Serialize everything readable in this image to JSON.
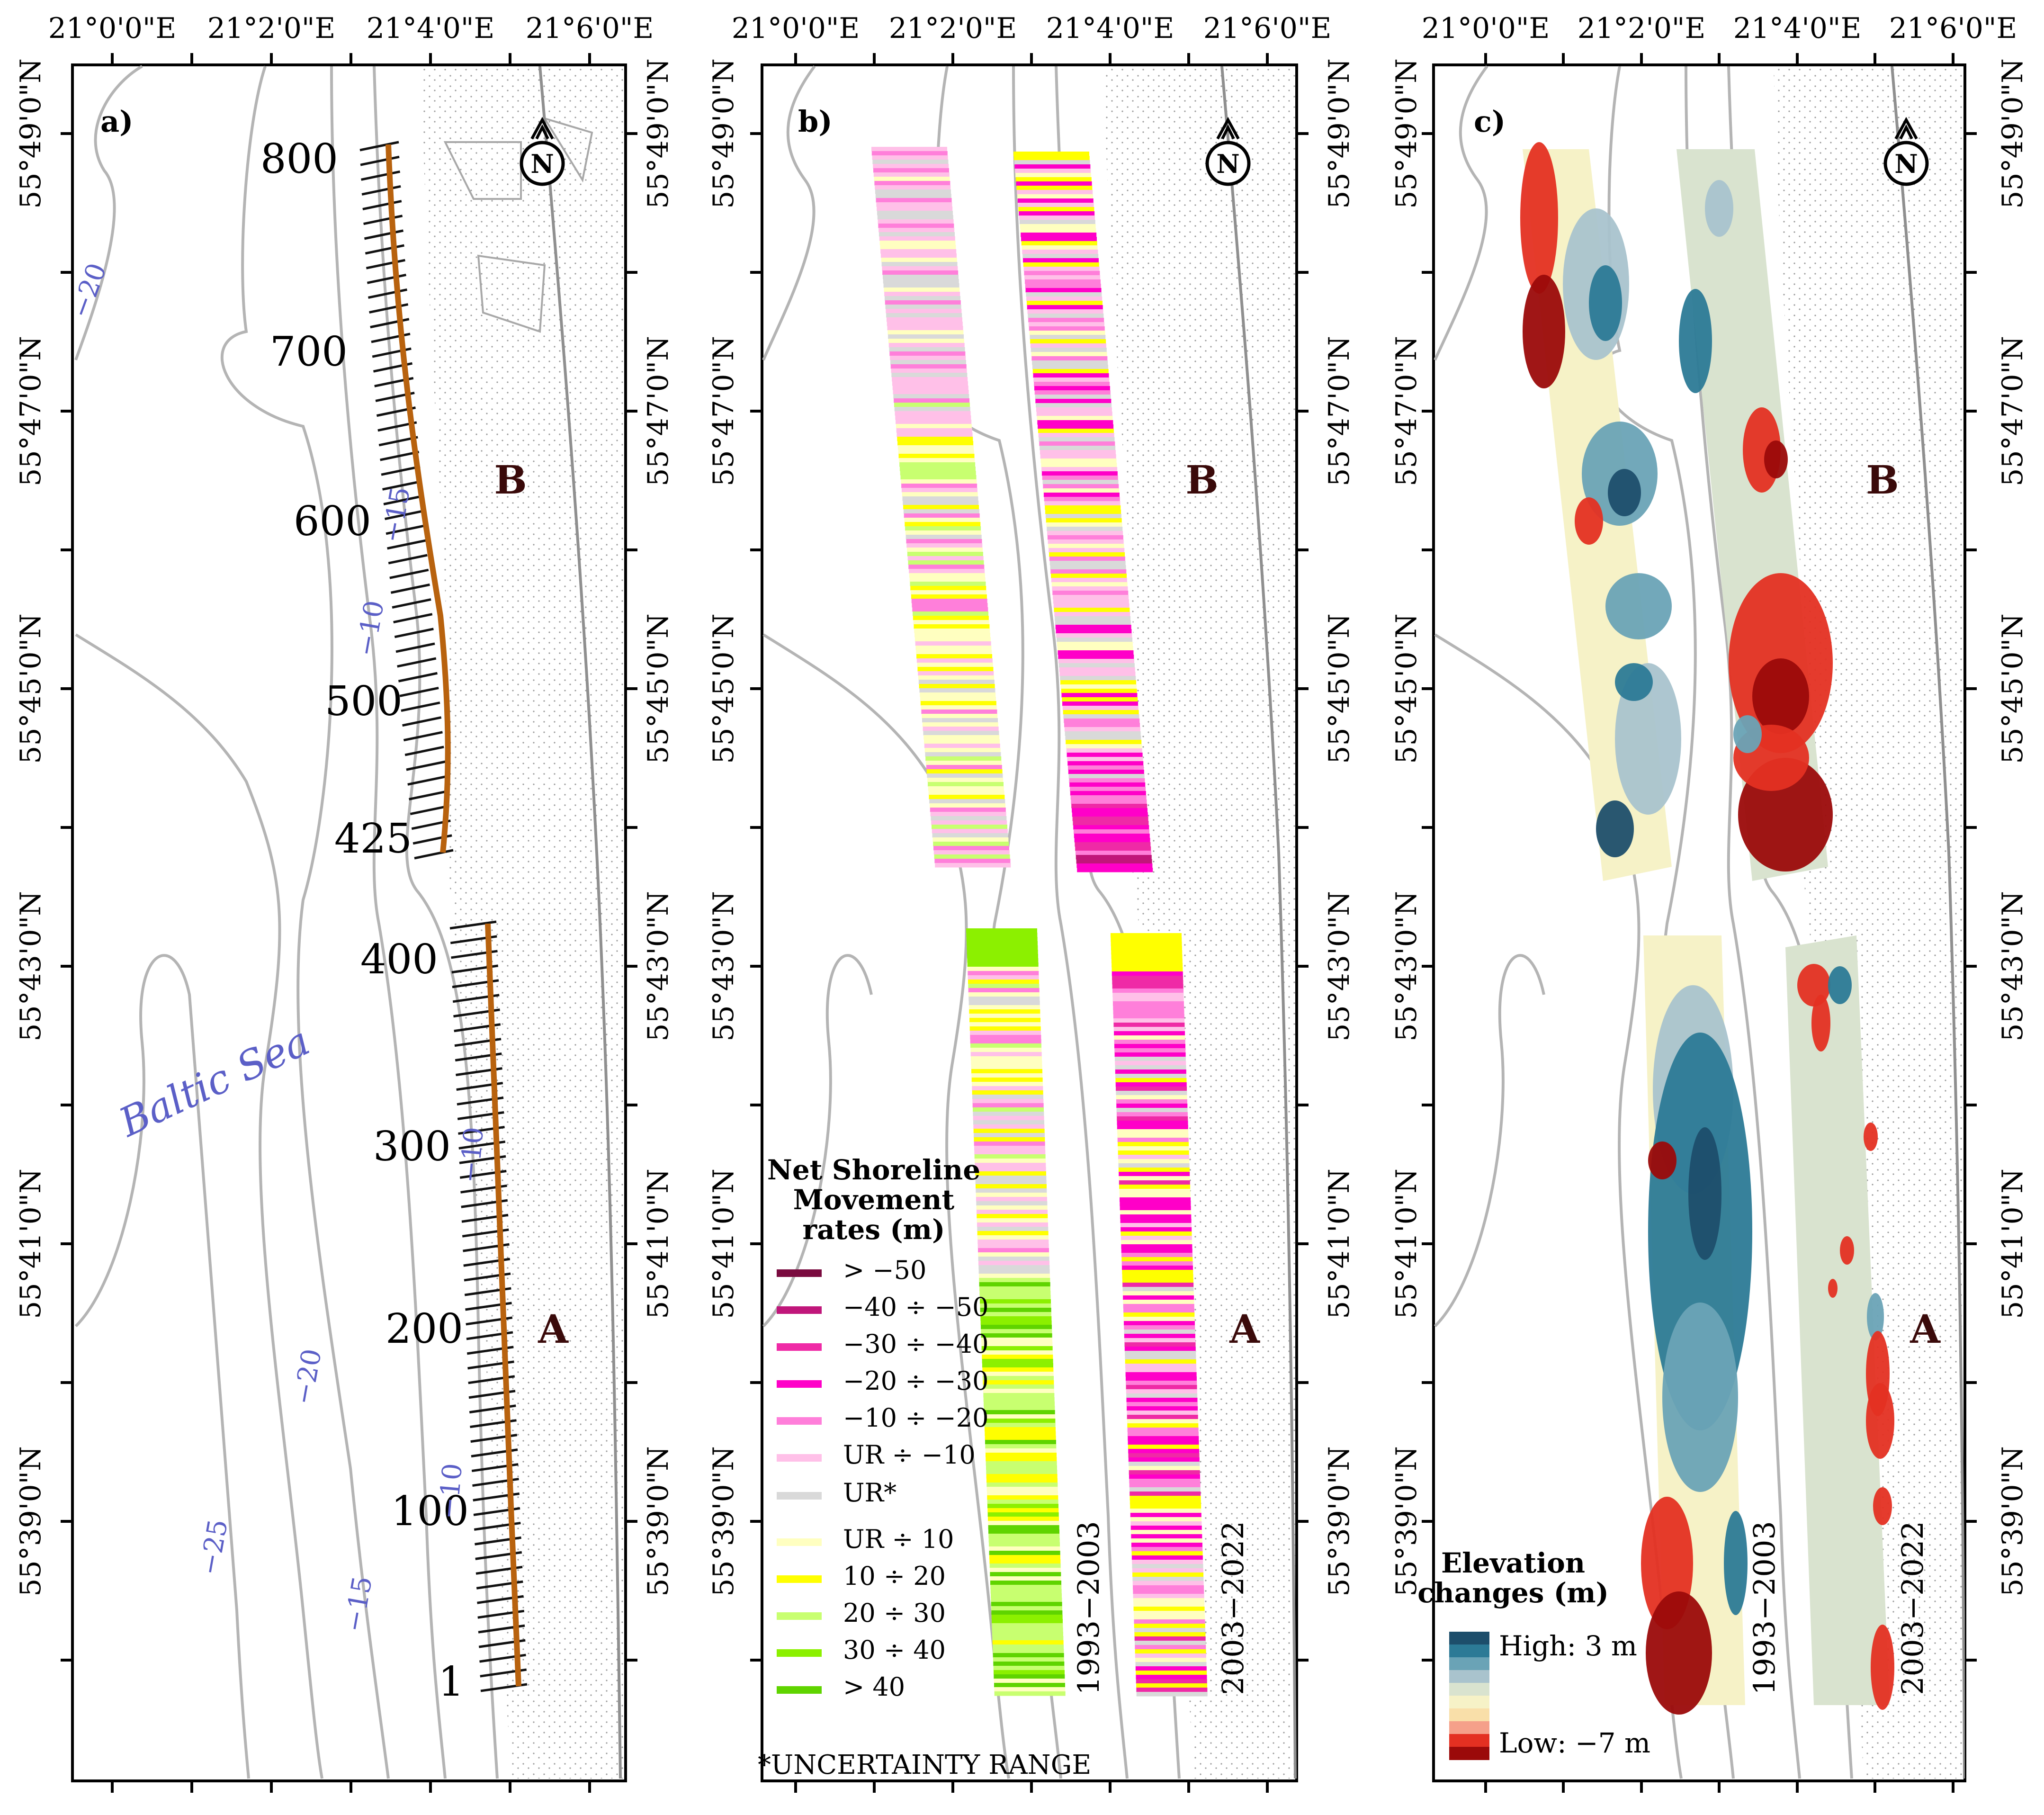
{
  "colors": {
    "nsm": [
      "#7a0b3f",
      "#c0167a",
      "#ef2aa6",
      "#ff00c8",
      "#ff7fda",
      "#ffc0e8",
      "#d9d9d9",
      "#ffffc0",
      "#ffff00",
      "#c8ff70",
      "#8cf000",
      "#5fd400"
    ],
    "elev": [
      "#1d4e6b",
      "#2c7a96",
      "#6aa3b6",
      "#a9c3cd",
      "#d9e3cf",
      "#f6f2c7",
      "#f9dfa9",
      "#f5a08a",
      "#e43022",
      "#9b0a0a"
    ],
    "contour": "#b4b4b4",
    "contourLabel": "#5b5fc7",
    "transect": "#111111",
    "shoreline": "#b8620e",
    "panelLetter": "#3a0a0a"
  },
  "axes": {
    "lon_labels": [
      "21°0'0\"E",
      "21°2'0\"E",
      "21°4'0\"E",
      "21°6'0\"E"
    ],
    "lat_labels": [
      "55°49'0\"N",
      "55°47'0\"N",
      "55°45'0\"N",
      "55°43'0\"N",
      "55°41'0\"N",
      "55°39'0\"N"
    ]
  },
  "panels": [
    {
      "id": "a",
      "label": "a)"
    },
    {
      "id": "b",
      "label": "b)"
    },
    {
      "id": "c",
      "label": "c)"
    }
  ],
  "north_arrow": "N",
  "zone_labels": {
    "a": "A",
    "b": "B"
  },
  "panel_a": {
    "sea_label": "Baltic Sea",
    "transect_labels": [
      "800",
      "700",
      "600",
      "500",
      "425",
      "400",
      "300",
      "200",
      "100",
      "1"
    ],
    "depth_labels": [
      "−20",
      "−15",
      "−10",
      "−20",
      "−25",
      "−15",
      "−10",
      "−10"
    ]
  },
  "period_labels": {
    "early": "1993−2003",
    "late": "2003−2022"
  },
  "nsm_legend": {
    "title_lines": [
      "Net Shoreline",
      "Movement",
      "rates (m)"
    ],
    "items": [
      "> −50",
      "−40 ÷ −50",
      "−30 ÷ −40",
      "−20 ÷ −30",
      "−10 ÷ −20",
      "UR ÷ −10",
      "UR*",
      "UR ÷ 10",
      "10 ÷ 20",
      "20 ÷ 30",
      "30 ÷ 40",
      "> 40"
    ],
    "footnote": "*UNCERTAINTY RANGE"
  },
  "elev_legend": {
    "title_lines": [
      "Elevation",
      "changes (m)"
    ],
    "high": "High: 3 m",
    "low": "Low: −7 m"
  }
}
